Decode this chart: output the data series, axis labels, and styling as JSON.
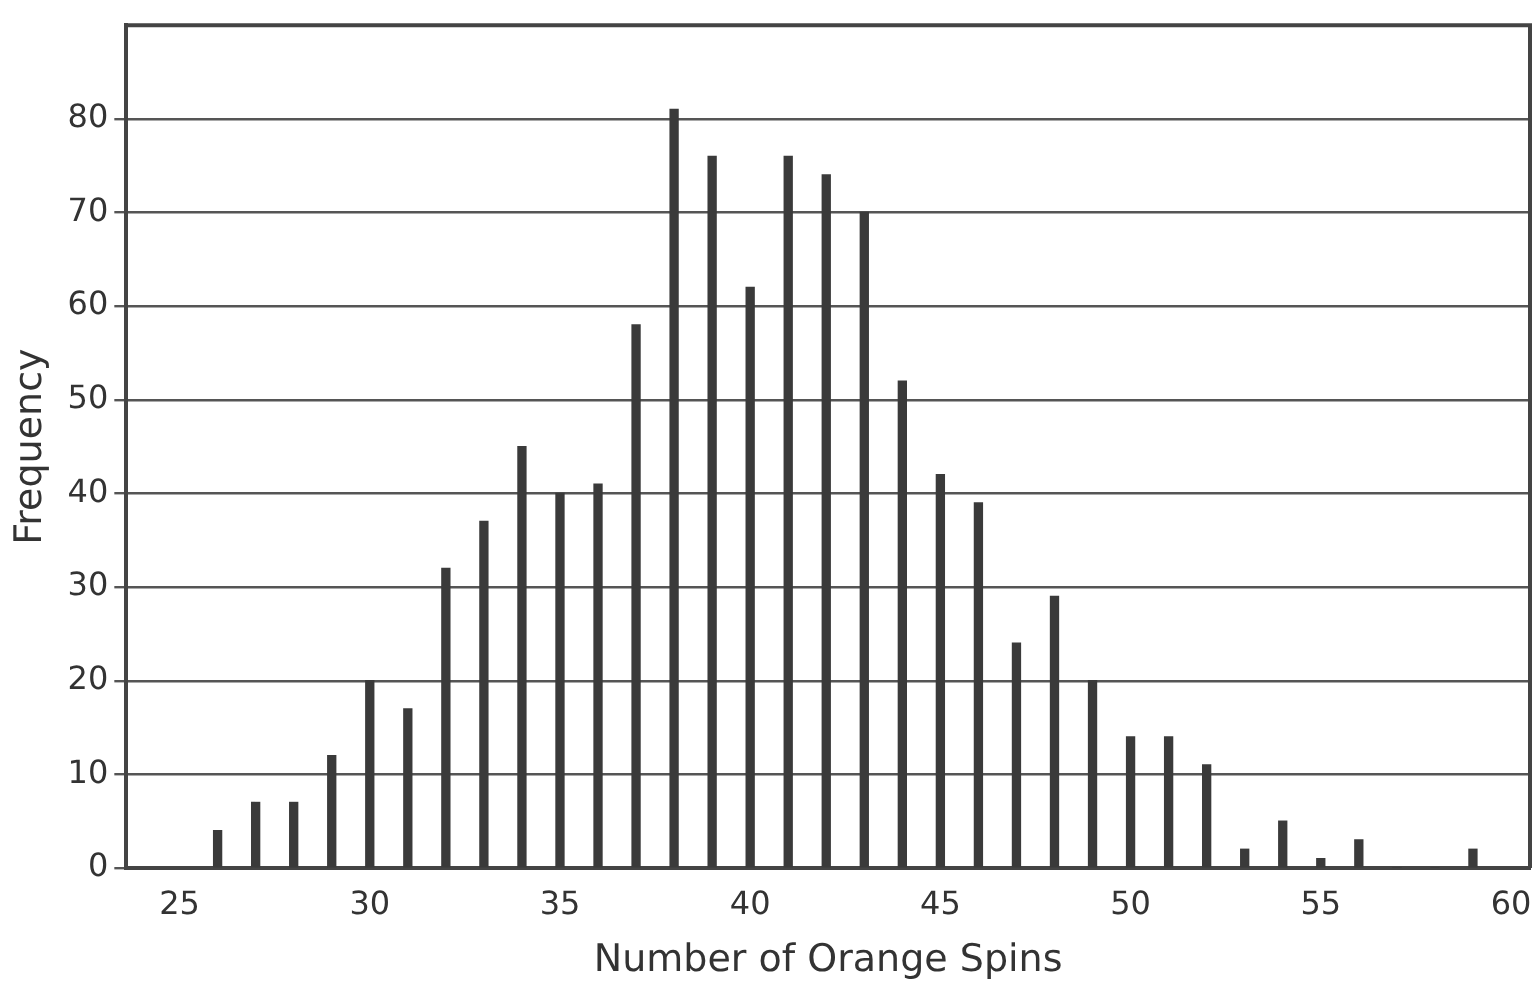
{
  "chart_data": {
    "type": "bar",
    "xlabel": "Number of Orange Spins",
    "ylabel": "Frequency",
    "x": [
      26,
      27,
      28,
      29,
      30,
      31,
      32,
      33,
      34,
      35,
      36,
      37,
      38,
      39,
      40,
      41,
      42,
      43,
      44,
      45,
      46,
      47,
      48,
      49,
      50,
      51,
      52,
      53,
      54,
      55,
      56,
      57,
      58,
      59
    ],
    "values": [
      4,
      7,
      7,
      12,
      20,
      17,
      32,
      37,
      45,
      40,
      41,
      58,
      81,
      76,
      62,
      76,
      74,
      70,
      52,
      42,
      39,
      24,
      29,
      20,
      14,
      14,
      11,
      2,
      5,
      1,
      3,
      0,
      0,
      2
    ],
    "color": "#3a3a3a",
    "xlim": [
      23.6,
      60.5
    ],
    "xticks": [
      25,
      30,
      35,
      40,
      45,
      50,
      55,
      60
    ],
    "ylim": [
      0,
      90
    ],
    "yticks": [
      0,
      10,
      20,
      30,
      40,
      50,
      60,
      70,
      80
    ],
    "grid": "y"
  }
}
